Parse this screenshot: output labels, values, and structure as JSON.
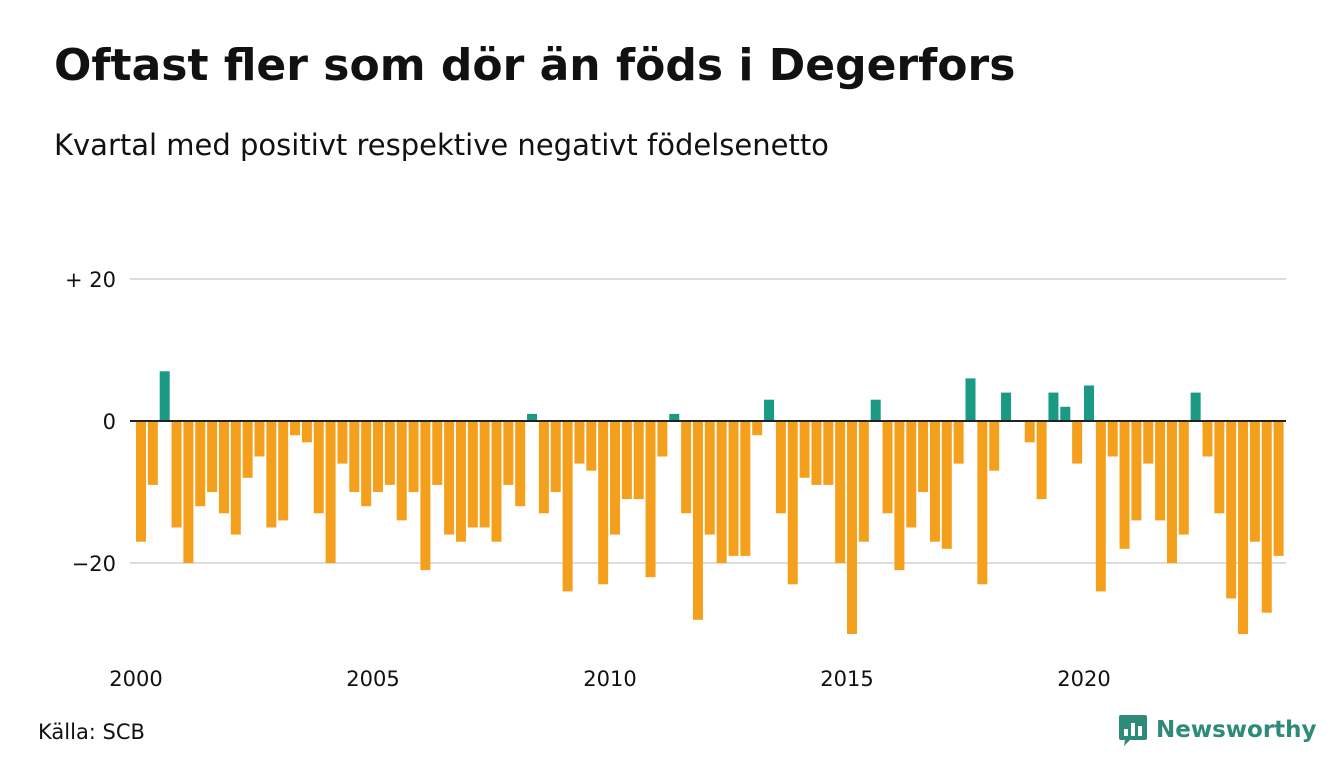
{
  "title": "Oftast fler som dör än föds i Degerfors",
  "subtitle": "Kvartal med positivt respektive negativt födelsenetto",
  "source": "Källa: SCB",
  "brand": {
    "name": "Newsworthy",
    "icon": "newsworthy-logo-icon",
    "color": "#2e8b7a"
  },
  "colors": {
    "positive": "#1a9985",
    "negative": "#f5a01d",
    "grid": "#dddddd",
    "zero": "#222222"
  },
  "chart_data": {
    "type": "bar",
    "title": "Oftast fler som dör än föds i Degerfors",
    "subtitle": "Kvartal med positivt respektive negativt födelsenetto",
    "xlabel": "",
    "ylabel": "",
    "x_start": 2000,
    "periods_per_year": 4,
    "x_ticks": [
      "2000",
      "2005",
      "2010",
      "2015",
      "2020"
    ],
    "y_ticks": [
      {
        "value": 20,
        "label": "+ 20"
      },
      {
        "value": 0,
        "label": "0"
      },
      {
        "value": -20,
        "label": "−20"
      }
    ],
    "ylim": [
      -32,
      22
    ],
    "grid": true,
    "legend": "none",
    "values": [
      -17,
      -9,
      7,
      -15,
      -20,
      -12,
      -10,
      -13,
      -16,
      -8,
      -5,
      -15,
      -14,
      -2,
      -3,
      -13,
      -20,
      -6,
      -10,
      -12,
      -10,
      -9,
      -14,
      -10,
      -21,
      -9,
      -16,
      -17,
      -15,
      -15,
      -17,
      -9,
      -12,
      1,
      -13,
      -10,
      -24,
      -6,
      -7,
      -23,
      -16,
      -11,
      -11,
      -22,
      -5,
      1,
      -13,
      -28,
      -16,
      -20,
      -19,
      -19,
      -2,
      3,
      -13,
      -23,
      -8,
      -9,
      -9,
      -20,
      -30,
      -17,
      3,
      -13,
      -21,
      -15,
      -10,
      -17,
      -18,
      -6,
      6,
      -23,
      -7,
      4,
      0,
      -3,
      -11,
      4,
      2,
      -6,
      5,
      -24,
      -5,
      -18,
      -14,
      -6,
      -14,
      -20,
      -16,
      4,
      -5,
      -13,
      -25,
      -30,
      -17,
      -27,
      -19
    ]
  }
}
